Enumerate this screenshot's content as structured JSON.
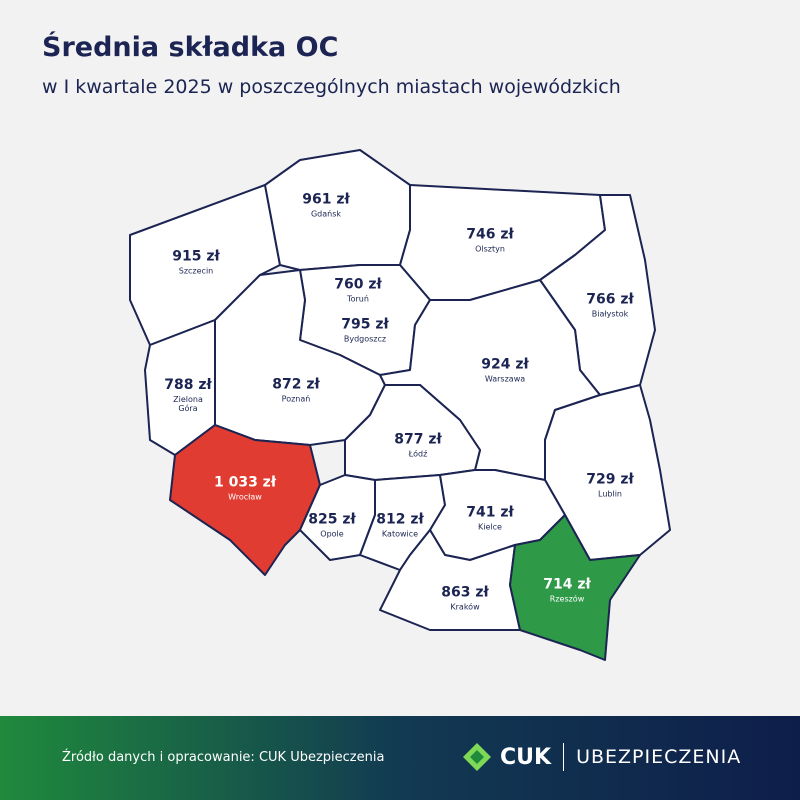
{
  "header": {
    "title": "Średnia składka OC",
    "subtitle": "w I kwartale 2025 w poszczególnych miastach wojewódzkich"
  },
  "regions": [
    {
      "amount": "915 zł",
      "city": "Szczecin",
      "color": "#ffffff"
    },
    {
      "amount": "961 zł",
      "city": "Gdańsk",
      "color": "#ffffff"
    },
    {
      "amount": "746 zł",
      "city": "Olsztyn",
      "color": "#ffffff"
    },
    {
      "amount": "766 zł",
      "city": "Białystok",
      "color": "#ffffff"
    },
    {
      "amount": "760 zł",
      "city": "Toruń",
      "color": "#ffffff"
    },
    {
      "amount": "795 zł",
      "city": "Bydgoszcz",
      "color": "#ffffff"
    },
    {
      "amount": "788 zł",
      "city": "Zielona Góra",
      "color": "#ffffff"
    },
    {
      "amount": "872 zł",
      "city": "Poznań",
      "color": "#ffffff"
    },
    {
      "amount": "924 zł",
      "city": "Warszawa",
      "color": "#ffffff"
    },
    {
      "amount": "729 zł",
      "city": "Lublin",
      "color": "#ffffff"
    },
    {
      "amount": "877 zł",
      "city": "Łódź",
      "color": "#ffffff"
    },
    {
      "amount": "1 033 zł",
      "city": "Wrocław",
      "color": "#e03c31"
    },
    {
      "amount": "825 zł",
      "city": "Opole",
      "color": "#ffffff"
    },
    {
      "amount": "812 zł",
      "city": "Katowice",
      "color": "#ffffff"
    },
    {
      "amount": "741 zł",
      "city": "Kielce",
      "color": "#ffffff"
    },
    {
      "amount": "863 zł",
      "city": "Kraków",
      "color": "#ffffff"
    },
    {
      "amount": "714 zł",
      "city": "Rzeszów",
      "color": "#2e9a47"
    }
  ],
  "footer": {
    "source": "Źródło danych i opracowanie: CUK Ubezpieczenia",
    "logo_brand": "CUK",
    "logo_name": "UBEZPIECZENIA"
  }
}
